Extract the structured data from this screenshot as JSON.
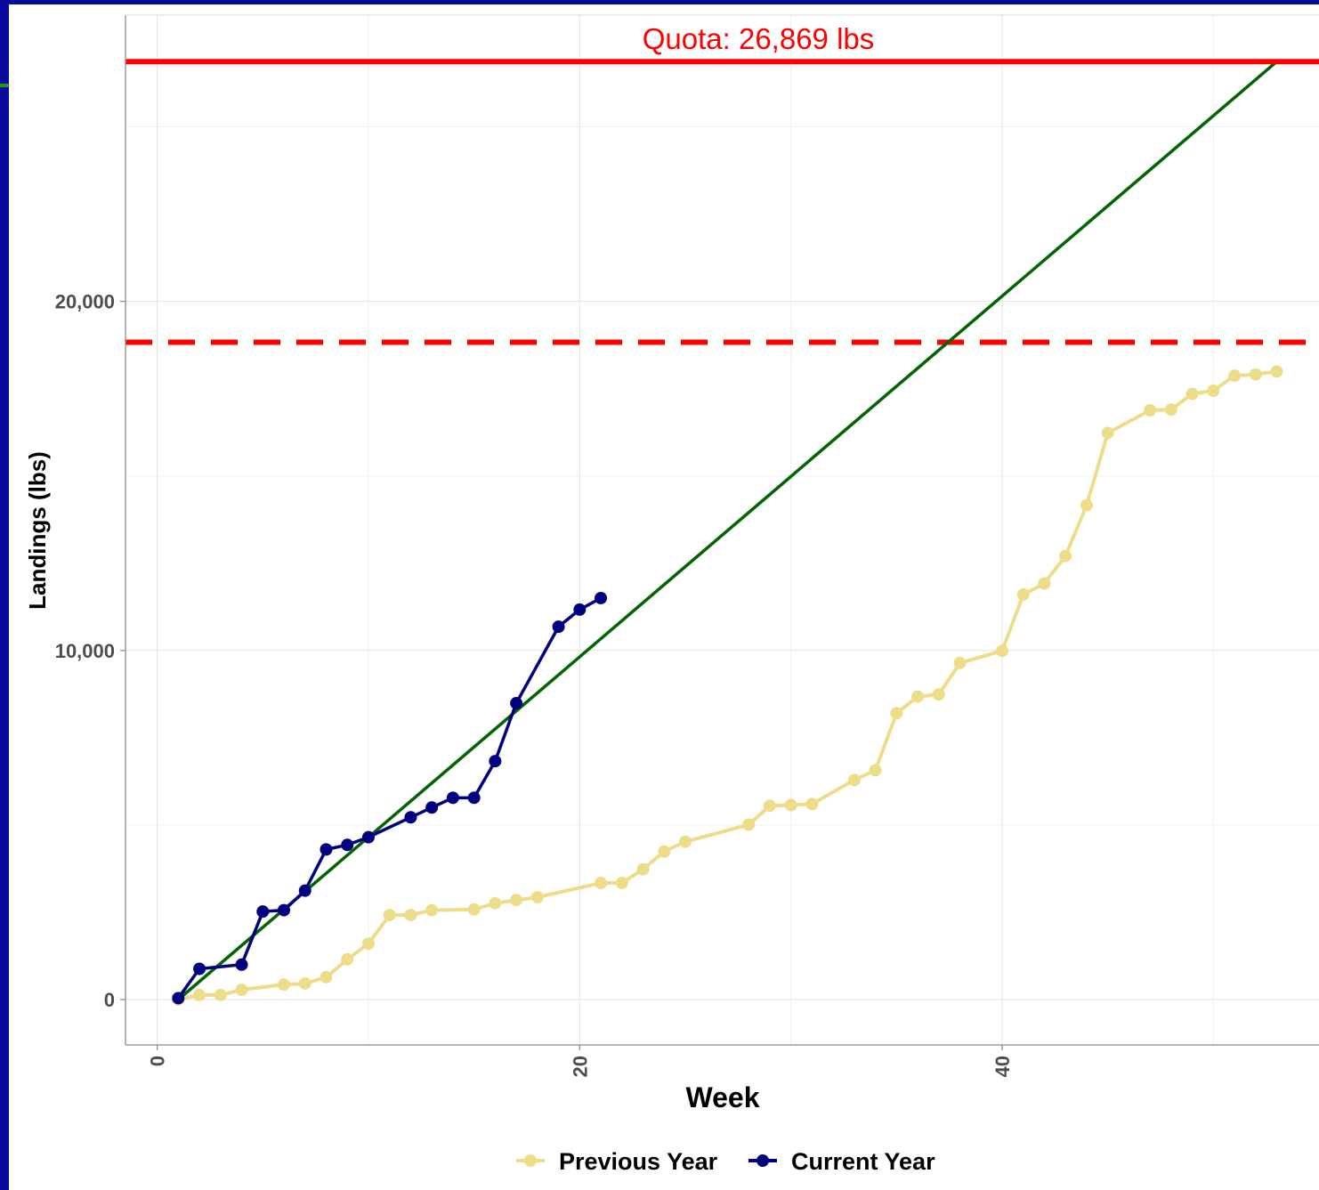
{
  "chart_data": {
    "type": "line",
    "title": "",
    "xlabel": "Week",
    "ylabel": "Landings (lbs)",
    "xlim": [
      -1.5,
      55
    ],
    "ylim": [
      -1300,
      28200
    ],
    "x_ticks": [
      0,
      20,
      40
    ],
    "x_tick_labels": [
      "0",
      "20",
      "40"
    ],
    "y_ticks": [
      0,
      10000,
      20000
    ],
    "y_tick_labels": [
      "0",
      "10,000",
      "20,000"
    ],
    "grid": true,
    "legend_position": "bottom",
    "quota": {
      "value": 26869,
      "label": "Quota: 26,869 lbs",
      "color": "#ff0000"
    },
    "threshold_dashed": {
      "value": 18830,
      "color": "#ff0000"
    },
    "target_line": {
      "x": [
        1,
        53
      ],
      "y": [
        0,
        26869
      ],
      "color": "#006400"
    },
    "series": [
      {
        "name": "Previous Year",
        "color": "#eedd88",
        "x": [
          1,
          2,
          3,
          4,
          6,
          7,
          8,
          9,
          10,
          11,
          12,
          13,
          15,
          16,
          17,
          18,
          21,
          22,
          23,
          24,
          25,
          28,
          29,
          30,
          31,
          33,
          34,
          35,
          36,
          37,
          38,
          40,
          41,
          42,
          43,
          44,
          45,
          47,
          48,
          49,
          50,
          51,
          52,
          53
        ],
        "y": [
          0,
          130,
          130,
          280,
          430,
          460,
          640,
          1150,
          1600,
          2420,
          2420,
          2560,
          2580,
          2760,
          2850,
          2930,
          3340,
          3340,
          3730,
          4240,
          4520,
          5010,
          5550,
          5570,
          5600,
          6290,
          6570,
          8200,
          8680,
          8740,
          9640,
          9990,
          11600,
          11920,
          12710,
          14160,
          16230,
          16880,
          16900,
          17350,
          17440,
          17870,
          17910,
          17990
        ]
      },
      {
        "name": "Current Year",
        "color": "#000080",
        "x": [
          1,
          2,
          4,
          5,
          6,
          7,
          8,
          9,
          10,
          12,
          13,
          14,
          15,
          16,
          17,
          19,
          20,
          21
        ],
        "y": [
          40,
          880,
          1000,
          2520,
          2560,
          3120,
          4300,
          4430,
          4650,
          5220,
          5500,
          5780,
          5780,
          6830,
          8490,
          10680,
          11170,
          11500
        ]
      }
    ]
  }
}
